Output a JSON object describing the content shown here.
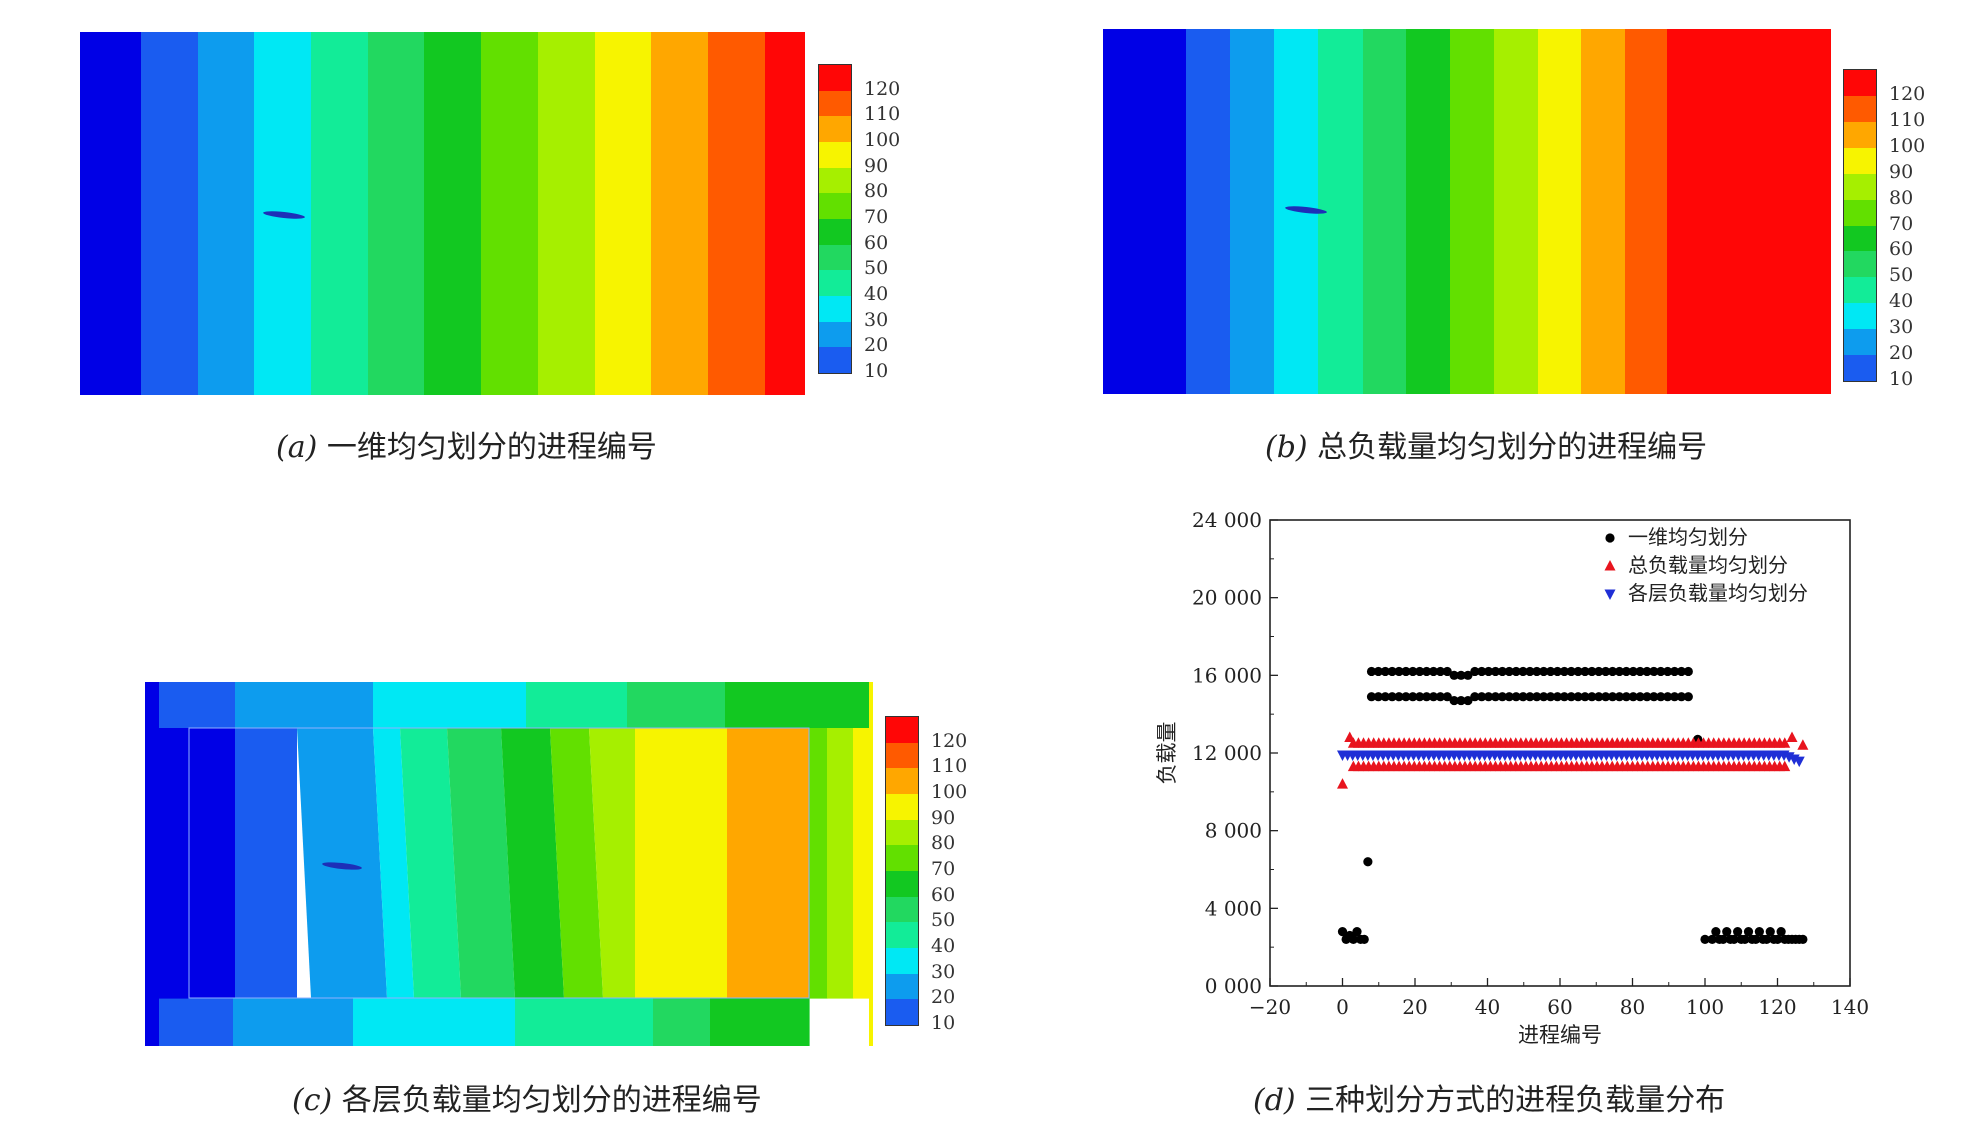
{
  "palette": [
    "#0000e6",
    "#1a5cf0",
    "#0d9cee",
    "#00e8f4",
    "#12ec98",
    "#22d860",
    "#12c821",
    "#62e000",
    "#a6ef00",
    "#f7f400",
    "#ffa700",
    "#ff5a00",
    "#ff0606"
  ],
  "colorbar_labels": [
    "120",
    "110",
    "100",
    "90",
    "80",
    "70",
    "60",
    "50",
    "40",
    "30",
    "20",
    "10"
  ],
  "panels": {
    "a": {
      "label": "(a)",
      "title": "一维均匀划分的进程编号"
    },
    "b": {
      "label": "(b)",
      "title": "总负载量均匀划分的进程编号"
    },
    "c": {
      "label": "(c)",
      "title": "各层负载量均匀划分的进程编号"
    },
    "d": {
      "label": "(d)",
      "title": "三种划分方式的进程负载量分布"
    }
  },
  "chart_data": [
    {
      "type": "heatmap",
      "panel": "a",
      "stripes_left_to_right": [
        0,
        1,
        2,
        3,
        4,
        5,
        6,
        7,
        8,
        9,
        10,
        11,
        12
      ],
      "colorbar_ticks": [
        10,
        20,
        30,
        40,
        50,
        60,
        70,
        80,
        90,
        100,
        110,
        120
      ]
    },
    {
      "type": "heatmap",
      "panel": "b",
      "stripes_left_to_right": [
        0,
        1,
        2,
        3,
        4,
        5,
        6,
        7,
        8,
        9,
        10,
        11,
        12
      ],
      "colorbar_ticks": [
        10,
        20,
        30,
        40,
        50,
        60,
        70,
        80,
        90,
        100,
        110,
        120
      ]
    },
    {
      "type": "heatmap",
      "panel": "c",
      "colorbar_ticks": [
        10,
        20,
        30,
        40,
        50,
        60,
        70,
        80,
        90,
        100,
        110,
        120
      ]
    },
    {
      "type": "scatter",
      "panel": "d",
      "xlabel": "进程编号",
      "ylabel": "负载量",
      "xlim": [
        -20,
        140
      ],
      "ylim": [
        0,
        24000
      ],
      "x_ticks": [
        "−20",
        "0",
        "20",
        "40",
        "60",
        "80",
        "100",
        "120",
        "140"
      ],
      "y_ticks": [
        "0 000",
        "4 000",
        "8 000",
        "12 000",
        "16 000",
        "20 000",
        "24 000"
      ],
      "legend_position": "top-right",
      "series": [
        {
          "name": "一维均匀划分",
          "marker": "circle",
          "color": "#000000",
          "points": [
            [
              0,
              2800
            ],
            [
              1,
              2400
            ],
            [
              2,
              2600
            ],
            [
              3,
              2400
            ],
            [
              4,
              2800
            ],
            [
              5,
              2400
            ],
            [
              6,
              2400
            ],
            [
              7,
              6400
            ],
            [
              98,
              12700
            ],
            [
              100,
              2400
            ],
            [
              102,
              2400
            ],
            [
              103,
              2800
            ],
            [
              104,
              2400
            ],
            [
              105,
              2400
            ],
            [
              106,
              2800
            ],
            [
              107,
              2400
            ],
            [
              108,
              2400
            ],
            [
              109,
              2800
            ],
            [
              110,
              2400
            ],
            [
              111,
              2400
            ],
            [
              112,
              2800
            ],
            [
              113,
              2400
            ],
            [
              114,
              2400
            ],
            [
              115,
              2800
            ],
            [
              116,
              2400
            ],
            [
              117,
              2400
            ],
            [
              118,
              2800
            ],
            [
              119,
              2400
            ],
            [
              120,
              2400
            ],
            [
              121,
              2800
            ],
            [
              122,
              2400
            ],
            [
              123,
              2400
            ],
            [
              124,
              2400
            ],
            [
              125,
              2400
            ],
            [
              126,
              2400
            ],
            [
              127,
              2400
            ]
          ],
          "band_upper": {
            "x_range": [
              8,
              97
            ],
            "value": 16200,
            "dip_at": [
              33,
              16000
            ]
          },
          "band_lower": {
            "x_range": [
              8,
              97
            ],
            "value": 14900,
            "dip_at": [
              33,
              14700
            ]
          }
        },
        {
          "name": "总负载量均匀划分",
          "marker": "triangle-up",
          "color": "#e8141e",
          "points": [
            [
              0,
              10400
            ],
            [
              2,
              12800
            ],
            [
              124,
              12800
            ],
            [
              127,
              12400
            ]
          ],
          "band_upper": {
            "x_range": [
              3,
              123
            ],
            "value": 12500
          },
          "band_lower": {
            "x_range": [
              3,
              123
            ],
            "value": 11300
          }
        },
        {
          "name": "各层负载量均匀划分",
          "marker": "triangle-down",
          "color": "#1f2fd6",
          "band": {
            "x_range": [
              0,
              127
            ],
            "value": 11900,
            "end_value": 11500
          }
        }
      ]
    }
  ]
}
